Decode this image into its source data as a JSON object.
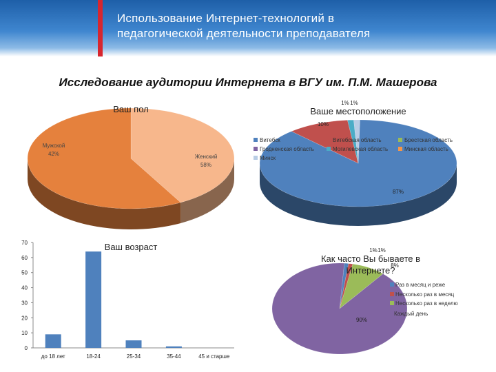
{
  "header": {
    "title_line1": "Использование Интернет-технологий в",
    "title_line2": "педагогической деятельности преподавателя",
    "accent": "#d7262e",
    "band_color": "#2f75c0"
  },
  "subtitle": "Исследование аудитории Интернета в ВГУ им. П.М. Машерова",
  "chart_data": [
    {
      "type": "pie",
      "title": "Ваш пол",
      "categories": [
        "Мужской",
        "Женский"
      ],
      "values": [
        42,
        58
      ],
      "data_labels": [
        "Мужской\n42%",
        "Женский\n58%"
      ],
      "colors": [
        "#f7b78c",
        "#e5813d"
      ]
    },
    {
      "type": "pie",
      "title": "Ваше местоположение",
      "categories": [
        "Витебск",
        "Витебская область",
        "Брестская область",
        "Гродненская область",
        "Могилевская область",
        "Минская область",
        "Минск"
      ],
      "values": [
        87,
        10,
        0,
        0,
        1,
        0,
        1
      ],
      "data_labels": [
        "87%",
        "10%",
        "",
        "",
        "1%",
        "",
        "1%"
      ],
      "legend": "top",
      "colors": [
        "#4f81bd",
        "#c0504d",
        "#9bbb59",
        "#8064a2",
        "#4bacc6",
        "#f79646",
        "#b9cde5"
      ]
    },
    {
      "type": "bar",
      "title": "Ваш возраст",
      "categories": [
        "до 18 лет",
        "18-24",
        "25-34",
        "35-44",
        "45 и старше"
      ],
      "values": [
        9,
        64,
        5,
        1,
        0
      ],
      "ylim": [
        0,
        70
      ],
      "yticks": [
        0,
        10,
        20,
        30,
        40,
        50,
        60,
        70
      ],
      "grid": false,
      "colors": [
        "#4f81bd"
      ]
    },
    {
      "type": "pie",
      "title_line1": "Как часто Вы бываете в",
      "title_line2": "Интернете?",
      "categories": [
        "Раз в месяц и реже",
        "Несколько раз в месяц",
        "Несколько раз в неделю",
        "Каждый день"
      ],
      "values": [
        1,
        1,
        8,
        90
      ],
      "data_labels": [
        "1%",
        "1%",
        "8%",
        "90%"
      ],
      "legend": "right",
      "colors": [
        "#4f81bd",
        "#c0504d",
        "#9bbb59",
        "#8064a2"
      ]
    }
  ]
}
